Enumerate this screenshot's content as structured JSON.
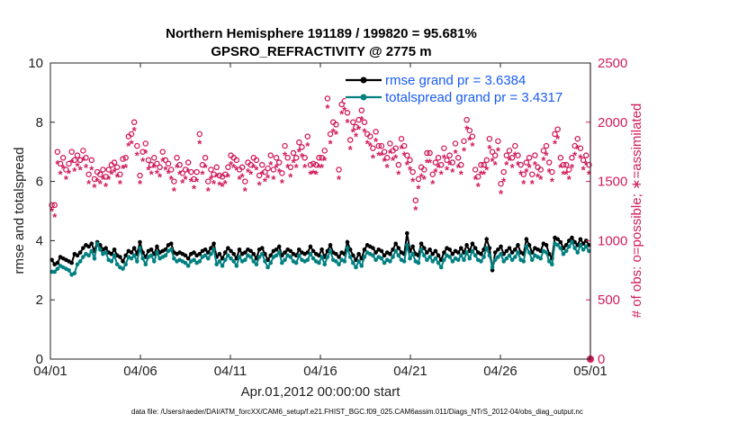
{
  "chart_data": {
    "type": "line",
    "title_line1": "Northern Hemisphere 191189 / 199820 = 95.681%",
    "title_line2": "GPSRO_REFRACTIVITY @ 2775 m",
    "xlabel": "Apr.01,2012 00:00:00 start",
    "ylabel_left": "rmse and totalspread",
    "ylabel_right": "# of obs: o=possible; ∗=assimilated",
    "footnote": "data file: /Users/raeder/DAI/ATM_forcXX/CAM6_setup/f.e21.FHIST_BGC.f09_025.CAM6assim.011/Diags_NTrS_2012-04/obs_diag_output.nc",
    "xlim": [
      0,
      30
    ],
    "ylim_left": [
      0,
      10
    ],
    "ylim_right": [
      0,
      2500
    ],
    "x_tick_positions": [
      0,
      5,
      10,
      15,
      20,
      25,
      30
    ],
    "x_tick_labels": [
      "04/01",
      "04/06",
      "04/11",
      "04/16",
      "04/21",
      "04/26",
      "05/01"
    ],
    "y_left_ticks": [
      0,
      2,
      4,
      6,
      8,
      10
    ],
    "y_right_ticks": [
      0,
      500,
      1000,
      1500,
      2000,
      2500
    ],
    "colors": {
      "rmse": "#000000",
      "spread": "#008080",
      "obs": "#d01c5c",
      "legend_text": "#1a5cf0"
    },
    "legend": [
      {
        "name": "rmse grand pr = 3.6384",
        "color": "#000000"
      },
      {
        "name": "totalspread grand pr = 3.4317",
        "color": "#008080"
      }
    ],
    "series": [
      {
        "name": "rmse",
        "axis": "left",
        "values": [
          3.35,
          3.2,
          3.25,
          3.45,
          3.4,
          3.35,
          3.3,
          3.25,
          3.55,
          3.5,
          3.6,
          3.75,
          3.85,
          3.8,
          3.9,
          3.65,
          3.95,
          3.85,
          3.7,
          3.75,
          3.6,
          3.55,
          3.7,
          3.5,
          3.45,
          3.3,
          3.5,
          3.65,
          3.6,
          3.75,
          3.55,
          3.95,
          3.6,
          3.45,
          3.65,
          3.7,
          3.55,
          3.8,
          3.6,
          3.65,
          3.7,
          3.85,
          3.9,
          3.6,
          3.55,
          3.6,
          3.55,
          3.5,
          3.4,
          3.55,
          3.6,
          3.5,
          3.55,
          3.65,
          3.7,
          3.6,
          3.75,
          3.9,
          3.45,
          3.55,
          3.4,
          3.6,
          3.75,
          3.65,
          3.55,
          3.4,
          3.7,
          3.55,
          3.6,
          3.7,
          3.65,
          3.55,
          3.4,
          3.7,
          3.75,
          3.55,
          3.35,
          3.5,
          3.65,
          3.7,
          3.8,
          3.5,
          3.6,
          3.7,
          3.65,
          3.55,
          3.5,
          3.7,
          3.6,
          3.55,
          3.6,
          3.8,
          3.65,
          3.55,
          3.5,
          3.7,
          3.45,
          3.65,
          3.85,
          3.6,
          3.55,
          3.45,
          3.6,
          3.55,
          3.95,
          3.7,
          3.5,
          3.35,
          3.55,
          3.4,
          3.7,
          3.85,
          3.8,
          3.75,
          3.6,
          3.7,
          3.65,
          3.5,
          3.6,
          3.55,
          3.7,
          3.9,
          3.75,
          3.6,
          3.55,
          4.25,
          3.65,
          3.8,
          3.55,
          3.5,
          3.9,
          3.75,
          3.6,
          3.7,
          3.55,
          3.65,
          3.5,
          3.35,
          3.6,
          3.75,
          3.7,
          3.55,
          3.65,
          3.6,
          3.75,
          3.6,
          3.85,
          3.65,
          3.9,
          3.75,
          3.6,
          3.55,
          3.7,
          4.05,
          3.75,
          3.0,
          3.6,
          3.7,
          3.8,
          3.55,
          3.65,
          3.75,
          3.6,
          3.7,
          3.85,
          3.6,
          3.55,
          4.05,
          3.85,
          3.6,
          3.75,
          3.7,
          3.65,
          3.9,
          3.85,
          3.55,
          3.4,
          4.1,
          4.05,
          3.95,
          3.75,
          3.85,
          4.0,
          4.1,
          3.95,
          3.85,
          4.05,
          3.9,
          4.0,
          3.85
        ]
      },
      {
        "name": "totalspread",
        "axis": "left",
        "values": [
          2.95,
          2.95,
          3.05,
          3.15,
          3.1,
          3.05,
          3.0,
          2.85,
          2.9,
          3.2,
          3.3,
          3.45,
          3.55,
          3.5,
          3.65,
          3.4,
          3.9,
          3.7,
          3.55,
          3.6,
          3.35,
          3.3,
          3.5,
          3.2,
          3.1,
          3.05,
          3.2,
          3.45,
          3.4,
          3.5,
          3.3,
          3.75,
          3.4,
          3.2,
          3.45,
          3.5,
          3.3,
          3.6,
          3.4,
          3.45,
          3.5,
          3.65,
          3.7,
          3.4,
          3.3,
          3.35,
          3.3,
          3.25,
          3.15,
          3.3,
          3.35,
          3.25,
          3.3,
          3.45,
          3.5,
          3.4,
          3.55,
          3.7,
          3.2,
          3.3,
          3.15,
          3.35,
          3.5,
          3.4,
          3.3,
          3.15,
          3.45,
          3.3,
          3.35,
          3.5,
          3.45,
          3.3,
          3.2,
          3.45,
          3.55,
          3.3,
          3.1,
          3.25,
          3.45,
          3.5,
          3.6,
          3.25,
          3.35,
          3.5,
          3.45,
          3.3,
          3.25,
          3.5,
          3.35,
          3.3,
          3.35,
          3.55,
          3.4,
          3.3,
          3.25,
          3.45,
          3.2,
          3.45,
          3.65,
          3.35,
          3.3,
          3.2,
          3.35,
          3.3,
          3.75,
          3.45,
          3.25,
          3.1,
          3.3,
          3.15,
          3.45,
          3.6,
          3.55,
          3.5,
          3.35,
          3.45,
          3.4,
          3.25,
          3.35,
          3.3,
          3.45,
          3.65,
          3.5,
          3.35,
          3.3,
          3.85,
          3.4,
          3.55,
          3.3,
          3.25,
          3.7,
          3.5,
          3.35,
          3.45,
          3.3,
          3.4,
          3.25,
          3.1,
          3.35,
          3.5,
          3.45,
          3.3,
          3.4,
          3.35,
          3.5,
          3.35,
          3.6,
          3.4,
          3.65,
          3.5,
          3.35,
          3.3,
          3.45,
          3.75,
          3.5,
          3.1,
          3.35,
          3.45,
          3.55,
          3.3,
          3.4,
          3.5,
          3.35,
          3.45,
          3.6,
          3.35,
          3.3,
          3.8,
          3.6,
          3.35,
          3.5,
          3.45,
          3.4,
          3.65,
          3.6,
          3.3,
          3.2,
          3.9,
          3.85,
          3.75,
          3.55,
          3.65,
          3.8,
          3.95,
          3.75,
          3.6,
          3.85,
          3.7,
          3.8,
          3.65
        ]
      },
      {
        "name": "possible",
        "axis": "right",
        "marker": "o",
        "values": [
          1300,
          1300,
          1750,
          1650,
          1700,
          1600,
          1650,
          1750,
          1680,
          1720,
          1680,
          1760,
          1700,
          1560,
          1680,
          1520,
          1580,
          1560,
          1600,
          1540,
          1600,
          1640,
          1660,
          1620,
          1560,
          1690,
          1700,
          1880,
          1900,
          2000,
          1800,
          1550,
          1750,
          1820,
          1680,
          1640,
          1700,
          1650,
          1620,
          1750,
          1680,
          1650,
          1600,
          1500,
          1700,
          1640,
          1570,
          1600,
          1660,
          1580,
          1520,
          1580,
          1900,
          1640,
          1700,
          1500,
          1600,
          1560,
          1620,
          1550,
          1540,
          1560,
          1620,
          1720,
          1700,
          1680,
          1600,
          1620,
          1500,
          1660,
          1640,
          1700,
          1680,
          1550,
          1640,
          1580,
          1610,
          1720,
          1600,
          1700,
          1660,
          1570,
          1800,
          1700,
          1620,
          1740,
          1700,
          1830,
          1790,
          1700,
          1880,
          1640,
          1650,
          1640,
          1700,
          1700,
          1760,
          2200,
          1900,
          2000,
          1980,
          1600,
          2150,
          2180,
          2080,
          1850,
          2000,
          1960,
          2020,
          2100,
          2000,
          1900,
          1880,
          1780,
          1920,
          1800,
          1800,
          1750,
          1700,
          1820,
          1760,
          1780,
          1640,
          1860,
          1800,
          1720,
          1680,
          1580,
          1340,
          1520,
          1620,
          1600,
          1740,
          1740,
          1560,
          1660,
          1700,
          1640,
          1780,
          1680,
          1720,
          1660,
          1820,
          1700,
          1640,
          1840,
          2020,
          1930,
          1880,
          1600,
          1540,
          1640,
          1640,
          1680,
          1860,
          1750,
          1720,
          1840,
          1480,
          1580,
          1720,
          1760,
          1700,
          1800,
          1720,
          1640,
          1560,
          1660,
          1700,
          1560,
          1720,
          1620,
          1600,
          1760,
          1800,
          1660,
          1580,
          1900,
          1940,
          1700,
          1640,
          1640,
          1600,
          1700,
          1800,
          1860,
          1780,
          1680,
          1720,
          1640
        ]
      },
      {
        "name": "assimilated",
        "axis": "right",
        "marker": "*",
        "values": [
          1250,
          1200,
          1650,
          1560,
          1610,
          1520,
          1570,
          1660,
          1590,
          1630,
          1600,
          1680,
          1620,
          1480,
          1600,
          1450,
          1500,
          1480,
          1520,
          1460,
          1520,
          1560,
          1580,
          1540,
          1480,
          1610,
          1620,
          1800,
          1820,
          1930,
          1720,
          1480,
          1670,
          1740,
          1600,
          1560,
          1620,
          1570,
          1540,
          1670,
          1600,
          1570,
          1520,
          1420,
          1620,
          1560,
          1490,
          1520,
          1580,
          1500,
          1440,
          1500,
          1820,
          1560,
          1620,
          1420,
          1520,
          1480,
          1540,
          1470,
          1460,
          1480,
          1540,
          1640,
          1620,
          1600,
          1520,
          1540,
          1420,
          1580,
          1560,
          1620,
          1600,
          1470,
          1560,
          1500,
          1530,
          1640,
          1520,
          1620,
          1580,
          1490,
          1720,
          1620,
          1540,
          1660,
          1620,
          1750,
          1710,
          1620,
          1800,
          1560,
          1570,
          1560,
          1620,
          1620,
          1680,
          2120,
          1820,
          1920,
          1900,
          1520,
          2070,
          2100,
          2000,
          1770,
          1920,
          1880,
          1940,
          2020,
          1920,
          1820,
          1800,
          1700,
          1840,
          1720,
          1720,
          1670,
          1620,
          1740,
          1680,
          1700,
          1560,
          1780,
          1720,
          1640,
          1600,
          1500,
          1260,
          1440,
          1540,
          1520,
          1660,
          1660,
          1480,
          1580,
          1620,
          1560,
          1700,
          1600,
          1640,
          1580,
          1740,
          1620,
          1560,
          1760,
          1940,
          1850,
          1800,
          1520,
          1460,
          1560,
          1560,
          1600,
          1780,
          1670,
          1640,
          1760,
          1400,
          1500,
          1640,
          1680,
          1620,
          1720,
          1640,
          1560,
          1480,
          1580,
          1620,
          1480,
          1640,
          1540,
          1520,
          1680,
          1720,
          1580,
          1500,
          1820,
          1860,
          1620,
          1560,
          1560,
          1520,
          1620,
          1720,
          1780,
          1700,
          1600,
          1640,
          1560
        ]
      }
    ],
    "endpoint_marker_value": 0
  }
}
